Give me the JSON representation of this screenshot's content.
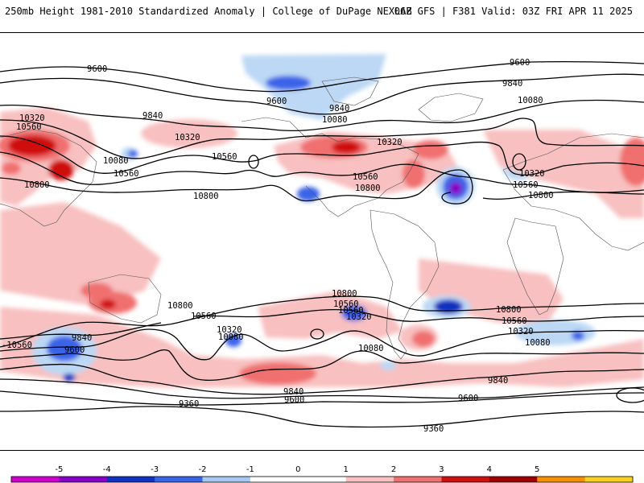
{
  "header": {
    "left": "250mb Height 1981-2010 Standardized Anomaly | College of DuPage NEXLAB",
    "right": "06Z GFS | F381 Valid: 03Z FRI APR 11 2025"
  },
  "contour_labels": [
    {
      "text": "9600"
    },
    {
      "text": "9600"
    },
    {
      "text": "9840"
    },
    {
      "text": "9600"
    },
    {
      "text": "9840"
    },
    {
      "text": "10080"
    },
    {
      "text": "10080"
    },
    {
      "text": "10320"
    },
    {
      "text": "10560"
    },
    {
      "text": "9840"
    },
    {
      "text": "10320"
    },
    {
      "text": "10560"
    },
    {
      "text": "10080"
    },
    {
      "text": "10560"
    },
    {
      "text": "10800"
    },
    {
      "text": "10800"
    },
    {
      "text": "10320"
    },
    {
      "text": "10560"
    },
    {
      "text": "10800"
    },
    {
      "text": "10320"
    },
    {
      "text": "10560"
    },
    {
      "text": "10800"
    },
    {
      "text": "10800"
    },
    {
      "text": "10560"
    },
    {
      "text": "10800"
    },
    {
      "text": "10560"
    },
    {
      "text": "10320"
    },
    {
      "text": "10080"
    },
    {
      "text": "10560"
    },
    {
      "text": "10320"
    },
    {
      "text": "10080"
    },
    {
      "text": "10800"
    },
    {
      "text": "10560"
    },
    {
      "text": "10320"
    },
    {
      "text": "10080"
    },
    {
      "text": "-10560"
    },
    {
      "text": "9840"
    },
    {
      "text": "9600"
    },
    {
      "text": "9840"
    },
    {
      "text": "9600"
    },
    {
      "text": "9600"
    },
    {
      "text": "9840"
    },
    {
      "text": "9360"
    },
    {
      "text": "9360"
    }
  ],
  "colorbar": {
    "ticks": [
      "-5",
      "-4",
      "-3",
      "-2",
      "-1",
      "0",
      "1",
      "2",
      "3",
      "4",
      "5"
    ],
    "colors": [
      "#d000d0",
      "#8800c8",
      "#1030c0",
      "#3a64e8",
      "#a8c8f4",
      "#ffffff",
      "#ffffff",
      "#f8c0c0",
      "#f07070",
      "#d01010",
      "#a00000",
      "#f89000",
      "#f8d020"
    ]
  }
}
